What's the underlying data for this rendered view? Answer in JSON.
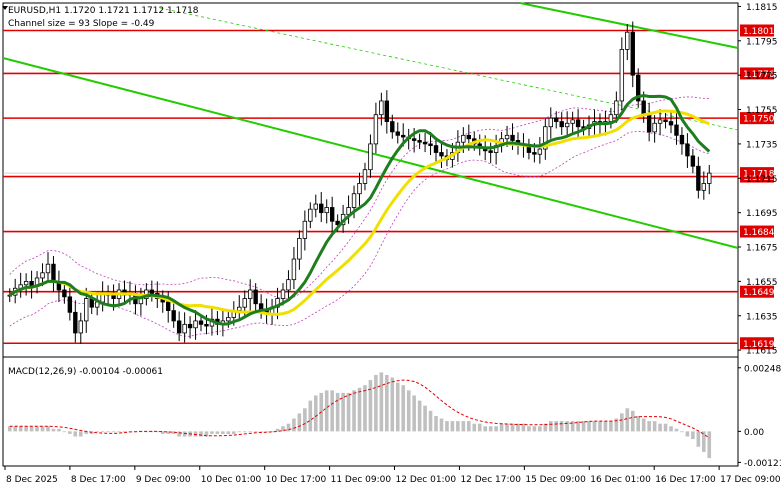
{
  "header": {
    "symbol_line": "EURUSD,H1  1.1720 1.1721 1.1712 1.1718",
    "channel_line": "Channel size = 93 Slope = -0.49"
  },
  "colors": {
    "bull": "#000000",
    "bear": "#000000",
    "level": "#e00000",
    "trend": "#22cc00",
    "ma_fast": "#1e7d1e",
    "ma_slow": "#f0e000",
    "bands": "#c040c0",
    "macd_hist": "#c0c0c0",
    "macd_signal": "#e00000"
  },
  "chart_data": [
    {
      "type": "candlestick",
      "ylim": [
        1.1611,
        1.1817
      ],
      "price_ticks": [
        "1.1815",
        "1.1795",
        "1.1775",
        "1.1755",
        "1.1735",
        "1.1715",
        "1.1695",
        "1.1675",
        "1.1655",
        "1.1635",
        "1.1615"
      ],
      "price_tick_values": [
        1.1815,
        1.1795,
        1.1775,
        1.1755,
        1.1735,
        1.1715,
        1.1695,
        1.1675,
        1.1655,
        1.1635,
        1.1615
      ],
      "levels": [
        {
          "label": "1.1801",
          "value": 1.1801
        },
        {
          "label": "1.1776",
          "value": 1.1776
        },
        {
          "label": "1.1750",
          "value": 1.175
        },
        {
          "label": "1.1716",
          "value": 1.1716
        },
        {
          "label": "1.1684",
          "value": 1.1684
        },
        {
          "label": "1.1649",
          "value": 1.1649
        },
        {
          "label": "1.1619",
          "value": 1.1619
        }
      ],
      "current_price": {
        "label": "1.1718",
        "value": 1.1718
      },
      "x_labels": [
        "8 Dec 2025",
        "8 Dec 17:00",
        "9 Dec 09:00",
        "10 Dec 01:00",
        "10 Dec 17:00",
        "11 Dec 09:00",
        "12 Dec 01:00",
        "12 Dec 17:00",
        "15 Dec 09:00",
        "16 Dec 01:00",
        "16 Dec 17:00",
        "17 Dec 09:00"
      ],
      "close": [
        1.1647,
        1.1651,
        1.1653,
        1.1655,
        1.1652,
        1.1657,
        1.166,
        1.1665,
        1.1655,
        1.165,
        1.1646,
        1.1637,
        1.1625,
        1.1632,
        1.1645,
        1.164,
        1.1643,
        1.1648,
        1.1647,
        1.1645,
        1.165,
        1.1647,
        1.1648,
        1.1642,
        1.1645,
        1.165,
        1.1648,
        1.1645,
        1.1643,
        1.1638,
        1.1632,
        1.1625,
        1.163,
        1.1628,
        1.1632,
        1.163,
        1.1629,
        1.1633,
        1.163,
        1.1632,
        1.1634,
        1.1638,
        1.164,
        1.1645,
        1.165,
        1.1642,
        1.1638,
        1.1636,
        1.164,
        1.1645,
        1.165,
        1.1656,
        1.1668,
        1.168,
        1.169,
        1.1697,
        1.17,
        1.1695,
        1.1698,
        1.169,
        1.1688,
        1.1694,
        1.1698,
        1.1706,
        1.1712,
        1.172,
        1.1735,
        1.1752,
        1.176,
        1.1748,
        1.1742,
        1.174,
        1.1739,
        1.1738,
        1.1737,
        1.1736,
        1.1735,
        1.1734,
        1.173,
        1.1728,
        1.1726,
        1.173,
        1.1736,
        1.174,
        1.1738,
        1.1735,
        1.1733,
        1.1731,
        1.173,
        1.1734,
        1.1738,
        1.174,
        1.1737,
        1.1735,
        1.1734,
        1.173,
        1.1729,
        1.1732,
        1.1745,
        1.175,
        1.1748,
        1.1745,
        1.1747,
        1.1749,
        1.1745,
        1.1744,
        1.1746,
        1.1748,
        1.1747,
        1.1748,
        1.1752,
        1.176,
        1.179,
        1.18,
        1.1775,
        1.176,
        1.1752,
        1.1742,
        1.1747,
        1.1749,
        1.1748,
        1.1746,
        1.174,
        1.1735,
        1.1728,
        1.1722,
        1.1708,
        1.1712,
        1.1718
      ],
      "macd": {
        "label": "MACD(12,26,9) -0.00104 -0.00061",
        "ticks": [
          "0.00248",
          "0.00",
          "-0.00121"
        ],
        "tick_values": [
          0.00248,
          0.0,
          -0.00121
        ],
        "ylim": [
          -0.00135,
          0.0029
        ],
        "histogram": [
          0.0002,
          0.0002,
          0.0002,
          0.0002,
          0.0002,
          0.0002,
          0.0002,
          0.0002,
          0.0001,
          0.0001,
          0.0,
          -0.0001,
          -0.0002,
          -0.0002,
          -0.0001,
          -0.0001,
          0.0,
          0.0,
          0.0,
          0.0,
          0.0,
          0.0,
          0.0,
          0.0,
          0.0,
          0.0,
          0.0,
          0.0,
          -0.0001,
          -0.0001,
          -0.0001,
          -0.0002,
          -0.0002,
          -0.0002,
          -0.0002,
          -0.0002,
          -0.0002,
          -0.0001,
          -0.0001,
          -0.0001,
          -0.0001,
          -0.0001,
          0.0,
          0.0,
          0.0,
          0.0,
          0.0,
          0.0,
          0.0,
          0.0001,
          0.0002,
          0.0003,
          0.0005,
          0.0007,
          0.0009,
          0.0012,
          0.0014,
          0.0015,
          0.0016,
          0.0016,
          0.0015,
          0.0015,
          0.0015,
          0.0016,
          0.0017,
          0.0018,
          0.002,
          0.0022,
          0.0023,
          0.0022,
          0.0021,
          0.0019,
          0.0018,
          0.0016,
          0.0014,
          0.0012,
          0.001,
          0.0008,
          0.0006,
          0.0005,
          0.0004,
          0.0004,
          0.0004,
          0.0004,
          0.0004,
          0.0003,
          0.0003,
          0.0002,
          0.0002,
          0.0002,
          0.0003,
          0.0003,
          0.0003,
          0.0003,
          0.0003,
          0.0002,
          0.0002,
          0.0002,
          0.0003,
          0.0004,
          0.0004,
          0.0004,
          0.0004,
          0.0004,
          0.0004,
          0.0004,
          0.0004,
          0.0004,
          0.0004,
          0.0004,
          0.0004,
          0.0005,
          0.0007,
          0.0009,
          0.0008,
          0.0006,
          0.0005,
          0.0004,
          0.0004,
          0.0003,
          0.0003,
          0.0002,
          0.0001,
          0.0,
          -0.0002,
          -0.0003,
          -0.0006,
          -0.0008,
          -0.00104
        ]
      }
    }
  ]
}
